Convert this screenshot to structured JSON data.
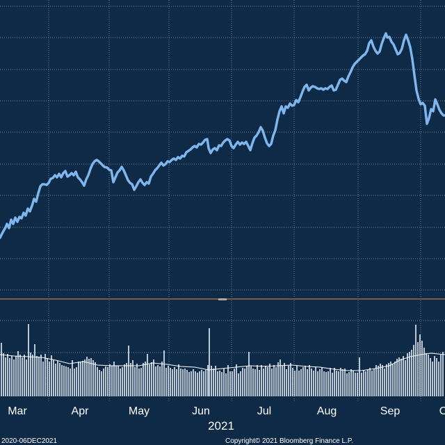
{
  "colors": {
    "background": "#0f2a47",
    "price_line": "#7fb6ee",
    "volume_bar": "#cfd9e3",
    "volume_avg": "#ffffff",
    "grid": "#8aa0b8",
    "separator": "#7d5a4a"
  },
  "footer": {
    "date_range": "2020-06DEC2021",
    "copyright": "Copyright© 2021 Bloomberg Finance L.P."
  },
  "chart_data": {
    "type": "line",
    "title": "",
    "xlabel": "2021",
    "ylabel": "",
    "grid": true,
    "legend": "none",
    "x_ticks": [
      "Mar",
      "Apr",
      "May",
      "Jun",
      "Jul",
      "Aug",
      "Sep",
      "O"
    ],
    "price": [
      [
        0,
        342
      ],
      [
        4,
        334
      ],
      [
        8,
        327
      ],
      [
        10,
        322
      ],
      [
        13,
        328
      ],
      [
        16,
        316
      ],
      [
        19,
        322
      ],
      [
        22,
        313
      ],
      [
        25,
        319
      ],
      [
        28,
        312
      ],
      [
        31,
        314
      ],
      [
        34,
        306
      ],
      [
        37,
        310
      ],
      [
        40,
        300
      ],
      [
        43,
        304
      ],
      [
        46,
        296
      ],
      [
        49,
        286
      ],
      [
        52,
        290
      ],
      [
        55,
        278
      ],
      [
        58,
        268
      ],
      [
        61,
        265
      ],
      [
        64,
        265
      ],
      [
        67,
        266
      ],
      [
        70,
        263
      ],
      [
        73,
        257
      ],
      [
        76,
        256
      ],
      [
        79,
        252
      ],
      [
        82,
        255
      ],
      [
        85,
        250
      ],
      [
        88,
        255
      ],
      [
        91,
        249
      ],
      [
        94,
        246
      ],
      [
        97,
        254
      ],
      [
        100,
        252
      ],
      [
        103,
        249
      ],
      [
        106,
        252
      ],
      [
        109,
        247
      ],
      [
        112,
        255
      ],
      [
        115,
        258
      ],
      [
        118,
        262
      ],
      [
        121,
        267
      ],
      [
        124,
        258
      ],
      [
        127,
        252
      ],
      [
        130,
        243
      ],
      [
        133,
        236
      ],
      [
        136,
        232
      ],
      [
        139,
        230
      ],
      [
        142,
        232
      ],
      [
        145,
        235
      ],
      [
        148,
        238
      ],
      [
        150,
        240
      ],
      [
        154,
        241
      ],
      [
        157,
        244
      ],
      [
        160,
        245
      ],
      [
        163,
        262
      ],
      [
        166,
        255
      ],
      [
        169,
        248
      ],
      [
        172,
        245
      ],
      [
        175,
        240
      ],
      [
        178,
        245
      ],
      [
        181,
        252
      ],
      [
        184,
        259
      ],
      [
        187,
        263
      ],
      [
        190,
        265
      ],
      [
        193,
        273
      ],
      [
        196,
        268
      ],
      [
        199,
        262
      ],
      [
        202,
        258
      ],
      [
        205,
        263
      ],
      [
        208,
        266
      ],
      [
        211,
        262
      ],
      [
        214,
        264
      ],
      [
        217,
        254
      ],
      [
        220,
        250
      ],
      [
        223,
        245
      ],
      [
        226,
        242
      ],
      [
        229,
        238
      ],
      [
        232,
        234
      ],
      [
        235,
        238
      ],
      [
        238,
        236
      ],
      [
        241,
        232
      ],
      [
        244,
        233
      ],
      [
        247,
        230
      ],
      [
        250,
        228
      ],
      [
        253,
        230
      ],
      [
        256,
        226
      ],
      [
        259,
        228
      ],
      [
        262,
        224
      ],
      [
        265,
        225
      ],
      [
        268,
        219
      ],
      [
        271,
        217
      ],
      [
        274,
        215
      ],
      [
        277,
        212
      ],
      [
        280,
        210
      ],
      [
        283,
        212
      ],
      [
        286,
        207
      ],
      [
        289,
        208
      ],
      [
        292,
        205
      ],
      [
        295,
        201
      ],
      [
        298,
        200
      ],
      [
        300,
        213
      ],
      [
        303,
        220
      ],
      [
        306,
        215
      ],
      [
        309,
        213
      ],
      [
        312,
        216
      ],
      [
        315,
        209
      ],
      [
        318,
        210
      ],
      [
        321,
        205
      ],
      [
        324,
        202
      ],
      [
        327,
        200
      ],
      [
        330,
        202
      ],
      [
        333,
        210
      ],
      [
        336,
        213
      ],
      [
        339,
        208
      ],
      [
        342,
        204
      ],
      [
        345,
        208
      ],
      [
        348,
        205
      ],
      [
        351,
        207
      ],
      [
        354,
        204
      ],
      [
        357,
        210
      ],
      [
        360,
        216
      ],
      [
        363,
        206
      ],
      [
        366,
        198
      ],
      [
        369,
        195
      ],
      [
        372,
        190
      ],
      [
        375,
        183
      ],
      [
        378,
        188
      ],
      [
        381,
        198
      ],
      [
        384,
        206
      ],
      [
        387,
        210
      ],
      [
        390,
        207
      ],
      [
        393,
        195
      ],
      [
        396,
        187
      ],
      [
        399,
        172
      ],
      [
        402,
        160
      ],
      [
        405,
        153
      ],
      [
        408,
        163
      ],
      [
        411,
        153
      ],
      [
        414,
        155
      ],
      [
        417,
        149
      ],
      [
        420,
        152
      ],
      [
        423,
        151
      ],
      [
        426,
        144
      ],
      [
        429,
        147
      ],
      [
        432,
        140
      ],
      [
        435,
        132
      ],
      [
        438,
        125
      ],
      [
        441,
        122
      ],
      [
        444,
        130
      ],
      [
        447,
        126
      ],
      [
        450,
        124
      ],
      [
        453,
        125
      ],
      [
        456,
        127
      ],
      [
        459,
        128
      ],
      [
        462,
        127
      ],
      [
        465,
        129
      ],
      [
        468,
        127
      ],
      [
        471,
        128
      ],
      [
        474,
        125
      ],
      [
        477,
        123
      ],
      [
        480,
        130
      ],
      [
        483,
        129
      ],
      [
        486,
        122
      ],
      [
        489,
        115
      ],
      [
        492,
        113
      ],
      [
        495,
        116
      ],
      [
        498,
        118
      ],
      [
        501,
        110
      ],
      [
        504,
        104
      ],
      [
        507,
        97
      ],
      [
        510,
        92
      ],
      [
        513,
        89
      ],
      [
        516,
        86
      ],
      [
        519,
        83
      ],
      [
        522,
        80
      ],
      [
        525,
        78
      ],
      [
        528,
        73
      ],
      [
        531,
        62
      ],
      [
        534,
        58
      ],
      [
        537,
        67
      ],
      [
        540,
        73
      ],
      [
        543,
        77
      ],
      [
        546,
        74
      ],
      [
        549,
        63
      ],
      [
        552,
        55
      ],
      [
        555,
        48
      ],
      [
        557,
        54
      ],
      [
        560,
        53
      ],
      [
        563,
        60
      ],
      [
        566,
        64
      ],
      [
        569,
        71
      ],
      [
        572,
        78
      ],
      [
        575,
        76
      ],
      [
        578,
        70
      ],
      [
        581,
        58
      ],
      [
        584,
        50
      ],
      [
        587,
        58
      ],
      [
        590,
        68
      ],
      [
        593,
        85
      ],
      [
        596,
        108
      ],
      [
        599,
        130
      ],
      [
        602,
        142
      ],
      [
        605,
        150
      ],
      [
        608,
        148
      ],
      [
        611,
        152
      ],
      [
        614,
        178
      ],
      [
        617,
        170
      ],
      [
        620,
        157
      ],
      [
        623,
        160
      ],
      [
        626,
        143
      ],
      [
        629,
        150
      ],
      [
        632,
        158
      ],
      [
        635,
        163
      ],
      [
        638,
        166
      ],
      [
        640,
        166
      ]
    ],
    "volume": [
      [
        2,
        493
      ],
      [
        5,
        508
      ],
      [
        8,
        514
      ],
      [
        11,
        509
      ],
      [
        14,
        515
      ],
      [
        17,
        512
      ],
      [
        20,
        517
      ],
      [
        23,
        512
      ],
      [
        26,
        505
      ],
      [
        29,
        510
      ],
      [
        32,
        514
      ],
      [
        35,
        510
      ],
      [
        38,
        517
      ],
      [
        41,
        466
      ],
      [
        44,
        507
      ],
      [
        47,
        510
      ],
      [
        50,
        495
      ],
      [
        53,
        512
      ],
      [
        56,
        513
      ],
      [
        59,
        510
      ],
      [
        62,
        520
      ],
      [
        65,
        509
      ],
      [
        68,
        515
      ],
      [
        71,
        520
      ],
      [
        74,
        511
      ],
      [
        77,
        517
      ],
      [
        80,
        523
      ],
      [
        83,
        519
      ],
      [
        86,
        522
      ],
      [
        89,
        525
      ],
      [
        92,
        526
      ],
      [
        95,
        527
      ],
      [
        98,
        528
      ],
      [
        101,
        530
      ],
      [
        104,
        518
      ],
      [
        107,
        530
      ],
      [
        110,
        528
      ],
      [
        113,
        520
      ],
      [
        116,
        520
      ],
      [
        119,
        519
      ],
      [
        122,
        517
      ],
      [
        125,
        513
      ],
      [
        128,
        516
      ],
      [
        131,
        515
      ],
      [
        134,
        518
      ],
      [
        137,
        521
      ],
      [
        140,
        528
      ],
      [
        143,
        532
      ],
      [
        146,
        534
      ],
      [
        149,
        530
      ],
      [
        152,
        527
      ],
      [
        155,
        528
      ],
      [
        158,
        524
      ],
      [
        161,
        526
      ],
      [
        164,
        520
      ],
      [
        167,
        526
      ],
      [
        170,
        526
      ],
      [
        173,
        530
      ],
      [
        176,
        528
      ],
      [
        179,
        524
      ],
      [
        182,
        522
      ],
      [
        185,
        497
      ],
      [
        188,
        522
      ],
      [
        191,
        518
      ],
      [
        194,
        528
      ],
      [
        197,
        523
      ],
      [
        200,
        530
      ],
      [
        203,
        529
      ],
      [
        206,
        522
      ],
      [
        209,
        520
      ],
      [
        212,
        509
      ],
      [
        215,
        524
      ],
      [
        218,
        521
      ],
      [
        221,
        517
      ],
      [
        224,
        527
      ],
      [
        227,
        525
      ],
      [
        230,
        527
      ],
      [
        233,
        520
      ],
      [
        236,
        504
      ],
      [
        239,
        529
      ],
      [
        242,
        526
      ],
      [
        245,
        529
      ],
      [
        248,
        531
      ],
      [
        251,
        528
      ],
      [
        254,
        531
      ],
      [
        257,
        524
      ],
      [
        260,
        530
      ],
      [
        263,
        531
      ],
      [
        266,
        530
      ],
      [
        269,
        532
      ],
      [
        272,
        535
      ],
      [
        275,
        534
      ],
      [
        278,
        531
      ],
      [
        281,
        534
      ],
      [
        284,
        536
      ],
      [
        287,
        534
      ],
      [
        290,
        532
      ],
      [
        293,
        534
      ],
      [
        296,
        532
      ],
      [
        299,
        525
      ],
      [
        301,
        472
      ],
      [
        304,
        526
      ],
      [
        307,
        530
      ],
      [
        310,
        526
      ],
      [
        313,
        534
      ],
      [
        316,
        533
      ],
      [
        319,
        535
      ],
      [
        322,
        530
      ],
      [
        325,
        537
      ],
      [
        328,
        525
      ],
      [
        331,
        534
      ],
      [
        334,
        534
      ],
      [
        337,
        530
      ],
      [
        340,
        524
      ],
      [
        343,
        537
      ],
      [
        346,
        534
      ],
      [
        349,
        529
      ],
      [
        352,
        530
      ],
      [
        355,
        527
      ],
      [
        358,
        506
      ],
      [
        361,
        527
      ],
      [
        364,
        530
      ],
      [
        367,
        531
      ],
      [
        370,
        525
      ],
      [
        373,
        532
      ],
      [
        376,
        525
      ],
      [
        379,
        530
      ],
      [
        382,
        526
      ],
      [
        385,
        528
      ],
      [
        388,
        523
      ],
      [
        391,
        530
      ],
      [
        394,
        525
      ],
      [
        397,
        528
      ],
      [
        400,
        521
      ],
      [
        403,
        517
      ],
      [
        406,
        526
      ],
      [
        409,
        522
      ],
      [
        412,
        531
      ],
      [
        415,
        526
      ],
      [
        418,
        522
      ],
      [
        421,
        529
      ],
      [
        424,
        533
      ],
      [
        427,
        526
      ],
      [
        430,
        533
      ],
      [
        433,
        531
      ],
      [
        436,
        528
      ],
      [
        439,
        526
      ],
      [
        442,
        531
      ],
      [
        445,
        525
      ],
      [
        448,
        530
      ],
      [
        451,
        533
      ],
      [
        454,
        528
      ],
      [
        457,
        534
      ],
      [
        460,
        531
      ],
      [
        463,
        529
      ],
      [
        466,
        534
      ],
      [
        469,
        535
      ],
      [
        472,
        534
      ],
      [
        475,
        529
      ],
      [
        478,
        536
      ],
      [
        481,
        529
      ],
      [
        484,
        533
      ],
      [
        487,
        534
      ],
      [
        490,
        529
      ],
      [
        493,
        531
      ],
      [
        496,
        530
      ],
      [
        499,
        537
      ],
      [
        502,
        535
      ],
      [
        505,
        531
      ],
      [
        508,
        533
      ],
      [
        511,
        536
      ],
      [
        514,
        536
      ],
      [
        517,
        514
      ],
      [
        520,
        536
      ],
      [
        523,
        532
      ],
      [
        526,
        534
      ],
      [
        529,
        532
      ],
      [
        532,
        529
      ],
      [
        535,
        533
      ],
      [
        538,
        530
      ],
      [
        541,
        525
      ],
      [
        544,
        526
      ],
      [
        547,
        523
      ],
      [
        550,
        525
      ],
      [
        553,
        530
      ],
      [
        556,
        524
      ],
      [
        559,
        522
      ],
      [
        562,
        520
      ],
      [
        565,
        523
      ],
      [
        568,
        520
      ],
      [
        571,
        516
      ],
      [
        574,
        514
      ],
      [
        577,
        516
      ],
      [
        580,
        512
      ],
      [
        583,
        518
      ],
      [
        586,
        508
      ],
      [
        589,
        506
      ],
      [
        592,
        503
      ],
      [
        595,
        496
      ],
      [
        598,
        467
      ],
      [
        601,
        492
      ],
      [
        604,
        481
      ],
      [
        607,
        490
      ],
      [
        610,
        500
      ],
      [
        613,
        508
      ],
      [
        616,
        510
      ],
      [
        619,
        515
      ],
      [
        622,
        520
      ],
      [
        625,
        512
      ],
      [
        628,
        515
      ],
      [
        631,
        520
      ],
      [
        634,
        510
      ],
      [
        637,
        506
      ]
    ],
    "volume_avg": [
      [
        0,
        510
      ],
      [
        20,
        512
      ],
      [
        40,
        513
      ],
      [
        60,
        514
      ],
      [
        80,
        518
      ],
      [
        100,
        523
      ],
      [
        120,
        520
      ],
      [
        140,
        525
      ],
      [
        160,
        526
      ],
      [
        180,
        526
      ],
      [
        200,
        526
      ],
      [
        220,
        522
      ],
      [
        240,
        524
      ],
      [
        260,
        527
      ],
      [
        280,
        528
      ],
      [
        300,
        532
      ],
      [
        320,
        530
      ],
      [
        340,
        528
      ],
      [
        360,
        526
      ],
      [
        380,
        527
      ],
      [
        400,
        526
      ],
      [
        420,
        525
      ],
      [
        440,
        527
      ],
      [
        460,
        528
      ],
      [
        480,
        531
      ],
      [
        500,
        533
      ],
      [
        520,
        533
      ],
      [
        540,
        530
      ],
      [
        560,
        526
      ],
      [
        575,
        518
      ],
      [
        590,
        513
      ],
      [
        605,
        510
      ],
      [
        620,
        508
      ],
      [
        640,
        510
      ]
    ]
  }
}
